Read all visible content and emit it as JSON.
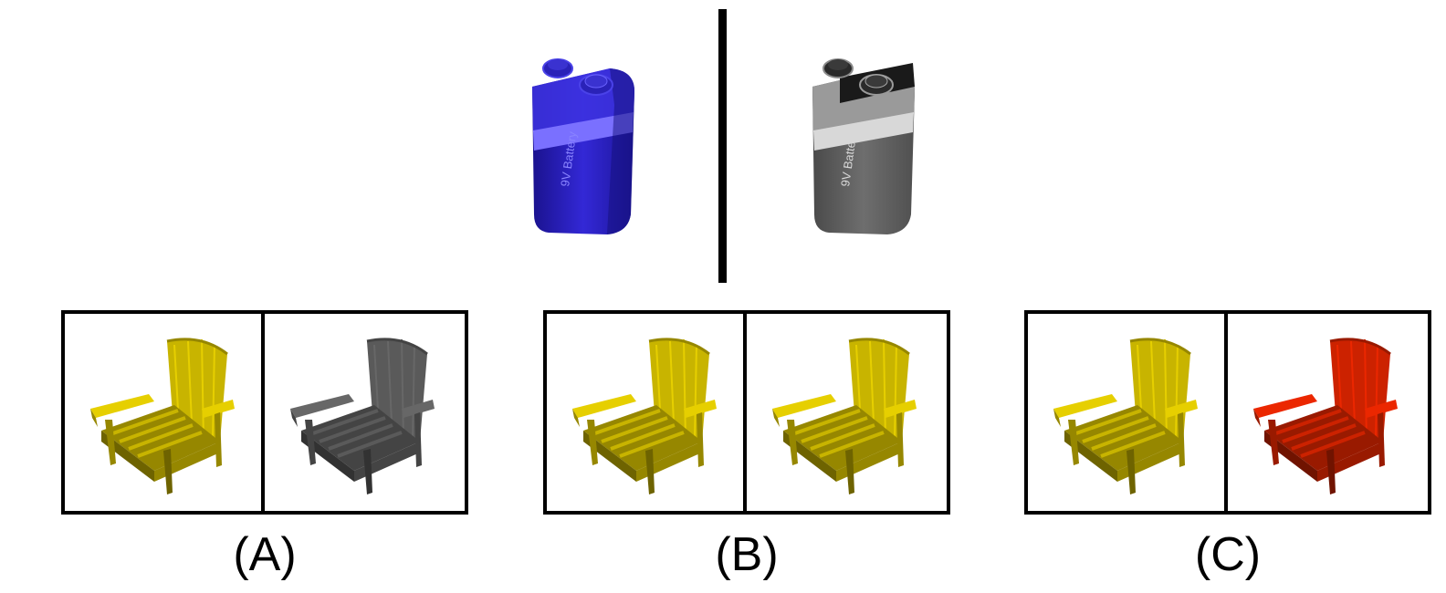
{
  "reference": {
    "left_object": {
      "icon": "battery-9v-icon",
      "color": "#2a22c8",
      "band_color": "#7a70ff",
      "label": "9V Battery"
    },
    "right_object": {
      "icon": "battery-9v-icon",
      "color": "#6b6b6b",
      "band_color": "#d0d0d0",
      "label": "9V Battery"
    }
  },
  "options": [
    {
      "caption": "(A)",
      "left_color": "#c8b400",
      "right_color": "#5a5a5a"
    },
    {
      "caption": "(B)",
      "left_color": "#c8b400",
      "right_color": "#c8b400"
    },
    {
      "caption": "(C)",
      "left_color": "#c8b400",
      "right_color": "#cc2200"
    }
  ],
  "option_icon": "adirondack-chair-icon"
}
